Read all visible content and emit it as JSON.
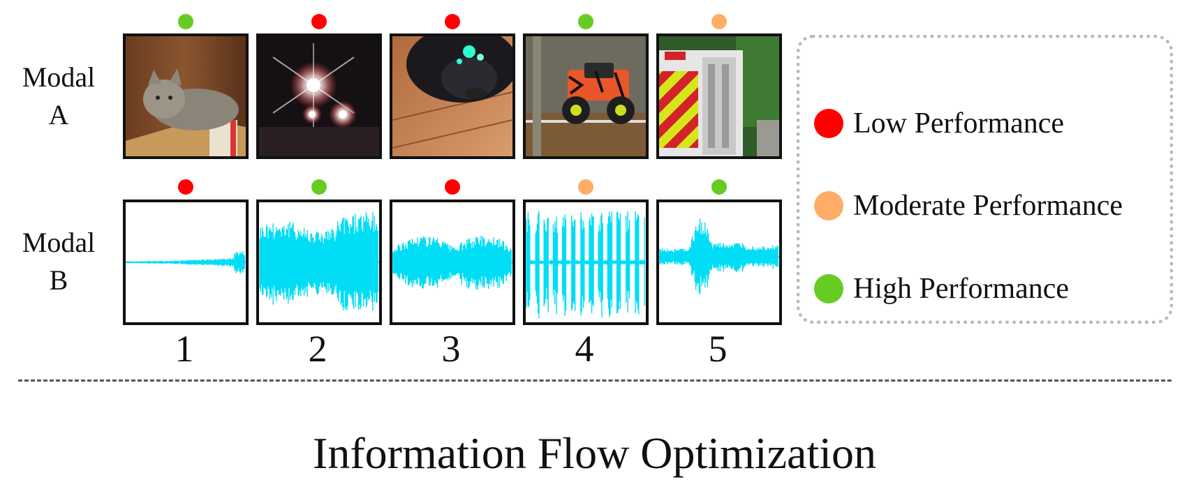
{
  "rows": [
    {
      "label_line1": "Modal",
      "label_line2": "A"
    },
    {
      "label_line1": "Modal",
      "label_line2": "B"
    }
  ],
  "columns": [
    "1",
    "2",
    "3",
    "4",
    "5"
  ],
  "performance": {
    "modal_a": [
      "high",
      "low",
      "low",
      "high",
      "moderate"
    ],
    "modal_b": [
      "low",
      "high",
      "low",
      "moderate",
      "high"
    ]
  },
  "colors": {
    "low": "#ff0000",
    "moderate": "#ffad66",
    "high": "#66cc22",
    "waveform": "#00ddf5"
  },
  "legend": [
    {
      "key": "low",
      "label": "Low Performance"
    },
    {
      "key": "moderate",
      "label": "Moderate Performance"
    },
    {
      "key": "high",
      "label": "High Performance"
    }
  ],
  "modal_a_images": [
    "cat-photo",
    "night-lights-photo",
    "dark-object-on-floor-photo",
    "monster-truck-photo",
    "fire-truck-photo"
  ],
  "modal_b_waveforms": [
    "waveform-1",
    "waveform-2",
    "waveform-3",
    "waveform-4",
    "waveform-5"
  ],
  "footer_title": "Information Flow Optimization"
}
